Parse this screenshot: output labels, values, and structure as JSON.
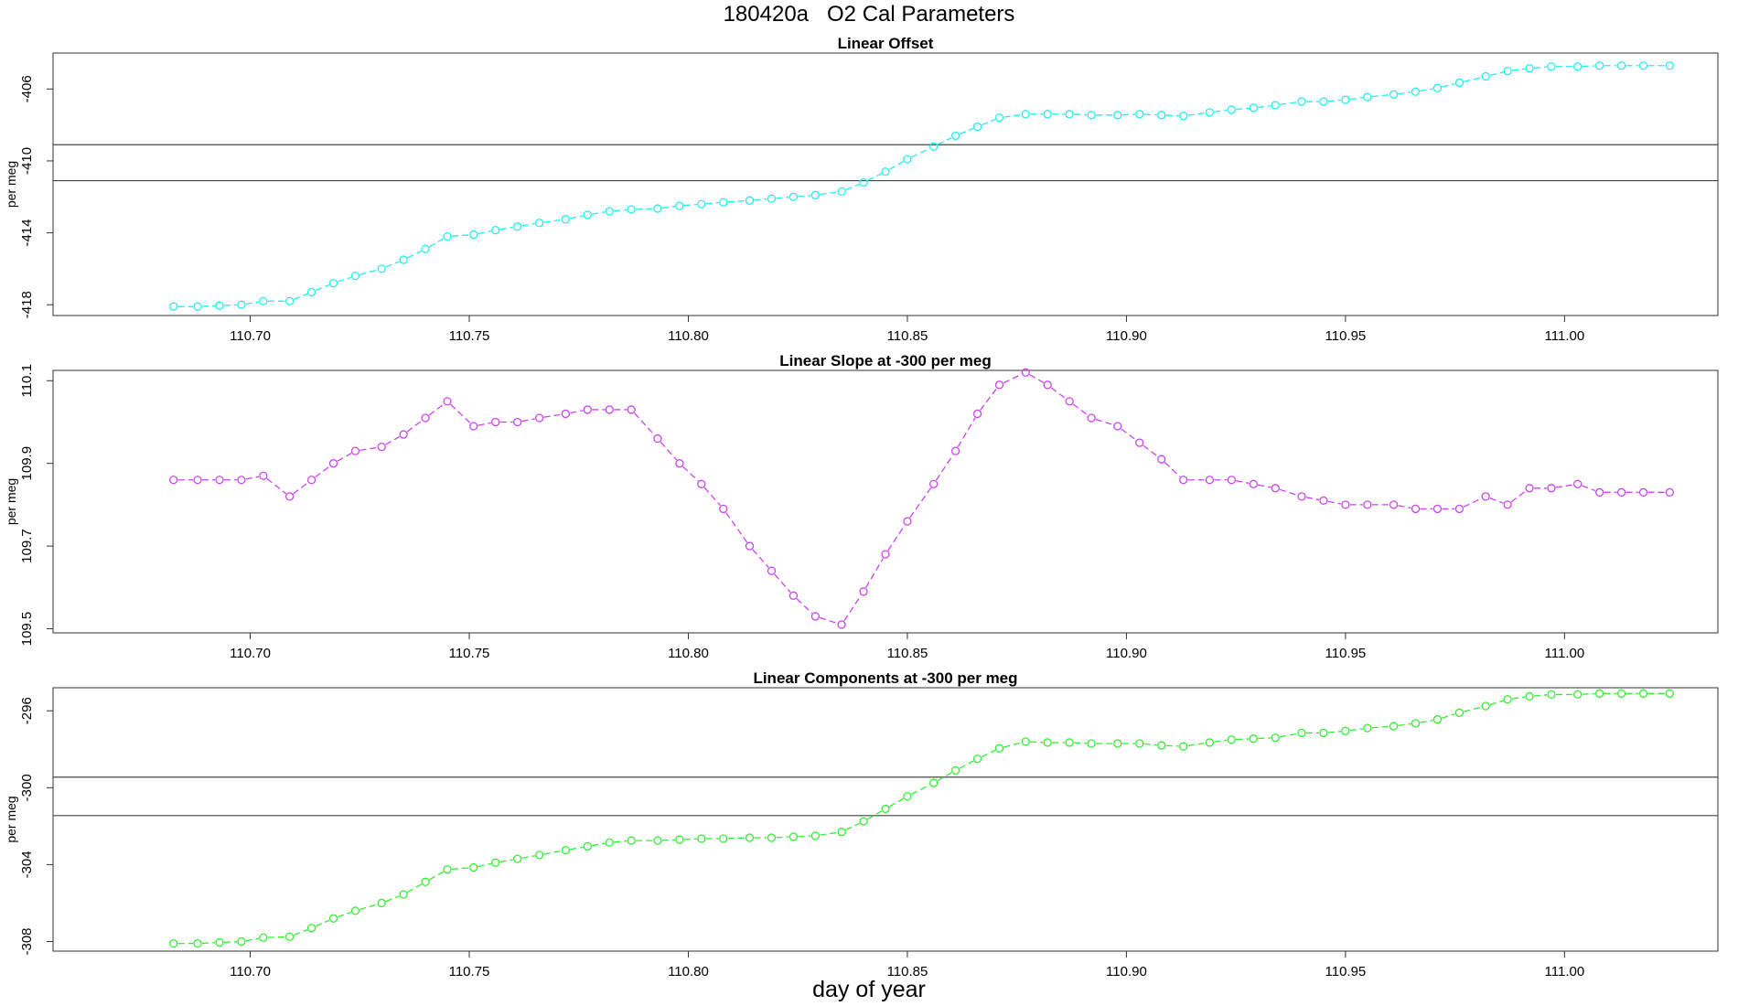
{
  "figure": {
    "title": "180420a   O2 Cal Parameters",
    "xlabel": "day of year"
  },
  "chart_data": [
    {
      "type": "line",
      "title": "Linear Offset",
      "xlabel": "day of year",
      "ylabel": "per meg",
      "color": "#22EEEE",
      "line_style": "dashed",
      "xlim": [
        110.655,
        111.035
      ],
      "ylim": [
        -418.6,
        -404.0
      ],
      "xticks": [
        110.7,
        110.75,
        110.8,
        110.85,
        110.9,
        110.95,
        111.0
      ],
      "xtick_labels": [
        "110.70",
        "110.75",
        "110.80",
        "110.85",
        "110.90",
        "110.95",
        "111.00"
      ],
      "yticks": [
        -418,
        -414,
        -410,
        -406
      ],
      "ytick_labels": [
        "-418",
        "-414",
        "-410",
        "-406"
      ],
      "hlines": [
        -409.1,
        -411.1
      ],
      "x": [
        110.6825,
        110.688,
        110.693,
        110.698,
        110.703,
        110.709,
        110.714,
        110.719,
        110.724,
        110.73,
        110.735,
        110.74,
        110.745,
        110.751,
        110.756,
        110.761,
        110.766,
        110.772,
        110.777,
        110.782,
        110.787,
        110.793,
        110.798,
        110.803,
        110.808,
        110.814,
        110.819,
        110.824,
        110.829,
        110.835,
        110.84,
        110.845,
        110.85,
        110.856,
        110.861,
        110.866,
        110.871,
        110.877,
        110.882,
        110.887,
        110.892,
        110.898,
        110.903,
        110.908,
        110.913,
        110.919,
        110.924,
        110.929,
        110.934,
        110.94,
        110.945,
        110.95,
        110.955,
        110.961,
        110.966,
        110.971,
        110.976,
        110.982,
        110.987,
        110.992,
        110.997,
        111.003,
        111.008,
        111.013,
        111.018,
        111.024
      ],
      "y": [
        -418.1,
        -418.1,
        -418.05,
        -418.0,
        -417.8,
        -417.8,
        -417.3,
        -416.8,
        -416.4,
        -416.0,
        -415.5,
        -414.9,
        -414.2,
        -414.1,
        -413.85,
        -413.65,
        -413.45,
        -413.25,
        -413.0,
        -412.8,
        -412.7,
        -412.65,
        -412.5,
        -412.4,
        -412.3,
        -412.2,
        -412.1,
        -412.0,
        -411.9,
        -411.7,
        -411.2,
        -410.6,
        -409.9,
        -409.2,
        -408.6,
        -408.1,
        -407.6,
        -407.4,
        -407.4,
        -407.4,
        -407.45,
        -407.45,
        -407.4,
        -407.45,
        -407.5,
        -407.3,
        -407.15,
        -407.05,
        -406.9,
        -406.7,
        -406.7,
        -406.6,
        -406.45,
        -406.3,
        -406.15,
        -405.95,
        -405.65,
        -405.3,
        -405.0,
        -404.85,
        -404.75,
        -404.75,
        -404.7,
        -404.7,
        -404.7,
        -404.7
      ]
    },
    {
      "type": "line",
      "title": "Linear Slope at -300 per meg",
      "xlabel": "day of year",
      "ylabel": "per meg",
      "color": "#CC44EE",
      "line_style": "dashed",
      "xlim": [
        110.655,
        111.035
      ],
      "ylim": [
        109.49,
        110.125
      ],
      "xticks": [
        110.7,
        110.75,
        110.8,
        110.85,
        110.9,
        110.95,
        111.0
      ],
      "xtick_labels": [
        "110.70",
        "110.75",
        "110.80",
        "110.85",
        "110.90",
        "110.95",
        "111.00"
      ],
      "yticks": [
        109.5,
        109.7,
        109.9,
        110.1
      ],
      "ytick_labels": [
        "109.5",
        "109.7",
        "109.9",
        "110.1"
      ],
      "hlines": [],
      "x": [
        110.6825,
        110.688,
        110.693,
        110.698,
        110.703,
        110.709,
        110.714,
        110.719,
        110.724,
        110.73,
        110.735,
        110.74,
        110.745,
        110.751,
        110.756,
        110.761,
        110.766,
        110.772,
        110.777,
        110.782,
        110.787,
        110.793,
        110.798,
        110.803,
        110.808,
        110.814,
        110.819,
        110.824,
        110.829,
        110.835,
        110.84,
        110.845,
        110.85,
        110.856,
        110.861,
        110.866,
        110.871,
        110.877,
        110.882,
        110.887,
        110.892,
        110.898,
        110.903,
        110.908,
        110.913,
        110.919,
        110.924,
        110.929,
        110.934,
        110.94,
        110.945,
        110.95,
        110.955,
        110.961,
        110.966,
        110.971,
        110.976,
        110.982,
        110.987,
        110.992,
        110.997,
        111.003,
        111.008,
        111.013,
        111.018,
        111.024
      ],
      "y": [
        109.86,
        109.86,
        109.86,
        109.86,
        109.87,
        109.82,
        109.86,
        109.9,
        109.93,
        109.94,
        109.97,
        110.01,
        110.05,
        109.99,
        110.0,
        110.0,
        110.01,
        110.02,
        110.03,
        110.03,
        110.03,
        109.96,
        109.9,
        109.85,
        109.79,
        109.7,
        109.64,
        109.58,
        109.53,
        109.51,
        109.59,
        109.68,
        109.76,
        109.85,
        109.93,
        110.02,
        110.09,
        110.12,
        110.09,
        110.05,
        110.01,
        109.99,
        109.95,
        109.91,
        109.86,
        109.86,
        109.86,
        109.85,
        109.84,
        109.82,
        109.81,
        109.8,
        109.8,
        109.8,
        109.79,
        109.79,
        109.79,
        109.82,
        109.8,
        109.84,
        109.84,
        109.85,
        109.83,
        109.83,
        109.83,
        109.83
      ]
    },
    {
      "type": "line",
      "title": "Linear Components at -300 per meg",
      "xlabel": "day of year",
      "ylabel": "per meg",
      "color": "#33EE33",
      "line_style": "dashed",
      "xlim": [
        110.655,
        111.035
      ],
      "ylim": [
        -308.5,
        -294.8
      ],
      "xticks": [
        110.7,
        110.75,
        110.8,
        110.85,
        110.9,
        110.95,
        111.0
      ],
      "xtick_labels": [
        "110.70",
        "110.75",
        "110.80",
        "110.85",
        "110.90",
        "110.95",
        "111.00"
      ],
      "yticks": [
        -308,
        -304,
        -300,
        -296
      ],
      "ytick_labels": [
        "-308",
        "-304",
        "-300",
        "-296"
      ],
      "hlines": [
        -299.45,
        -301.45
      ],
      "x": [
        110.6825,
        110.688,
        110.693,
        110.698,
        110.703,
        110.709,
        110.714,
        110.719,
        110.724,
        110.73,
        110.735,
        110.74,
        110.745,
        110.751,
        110.756,
        110.761,
        110.766,
        110.772,
        110.777,
        110.782,
        110.787,
        110.793,
        110.798,
        110.803,
        110.808,
        110.814,
        110.819,
        110.824,
        110.829,
        110.835,
        110.84,
        110.845,
        110.85,
        110.856,
        110.861,
        110.866,
        110.871,
        110.877,
        110.882,
        110.887,
        110.892,
        110.898,
        110.903,
        110.908,
        110.913,
        110.919,
        110.924,
        110.929,
        110.934,
        110.94,
        110.945,
        110.95,
        110.955,
        110.961,
        110.966,
        110.971,
        110.976,
        110.982,
        110.987,
        110.992,
        110.997,
        111.003,
        111.008,
        111.013,
        111.018,
        111.024
      ],
      "y": [
        -308.1,
        -308.1,
        -308.05,
        -308.0,
        -307.8,
        -307.75,
        -307.3,
        -306.8,
        -306.4,
        -306.0,
        -305.55,
        -304.9,
        -304.25,
        -304.15,
        -303.9,
        -303.7,
        -303.5,
        -303.25,
        -303.05,
        -302.85,
        -302.75,
        -302.75,
        -302.7,
        -302.65,
        -302.65,
        -302.6,
        -302.6,
        -302.55,
        -302.5,
        -302.3,
        -301.75,
        -301.1,
        -300.45,
        -299.75,
        -299.1,
        -298.5,
        -297.95,
        -297.6,
        -297.65,
        -297.65,
        -297.7,
        -297.7,
        -297.7,
        -297.8,
        -297.85,
        -297.65,
        -297.5,
        -297.45,
        -297.4,
        -297.15,
        -297.15,
        -297.05,
        -296.9,
        -296.8,
        -296.65,
        -296.45,
        -296.1,
        -295.75,
        -295.4,
        -295.25,
        -295.15,
        -295.15,
        -295.1,
        -295.1,
        -295.1,
        -295.1
      ]
    }
  ]
}
